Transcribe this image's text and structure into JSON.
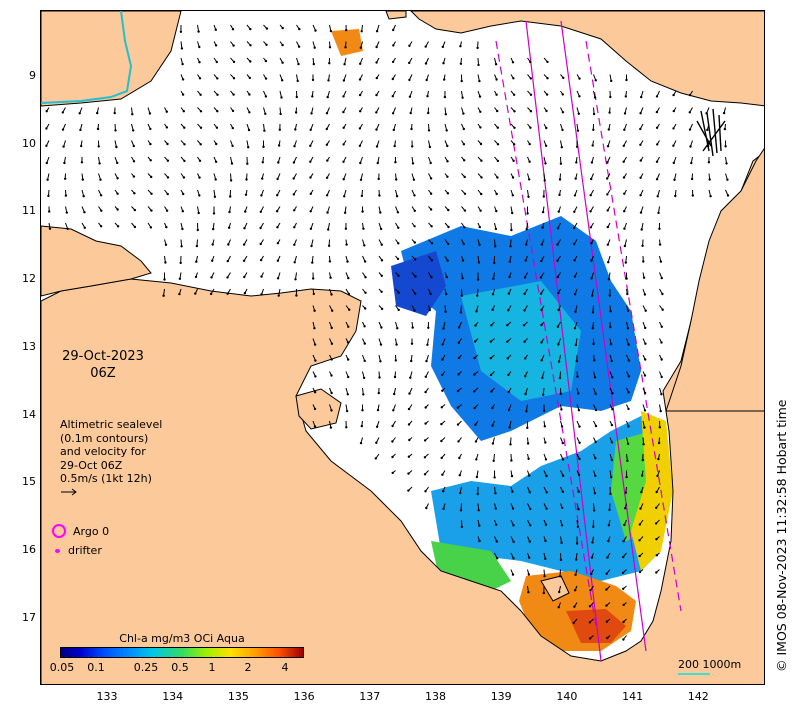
{
  "map": {
    "date": "29-Oct-2023",
    "time": "06Z",
    "lat_labels": [
      "9",
      "10",
      "11",
      "12",
      "13",
      "14",
      "15",
      "16",
      "17"
    ],
    "lon_labels": [
      "133",
      "134",
      "135",
      "136",
      "137",
      "138",
      "139",
      "140",
      "141",
      "142"
    ],
    "altimetry_legend": [
      "Altimetric sealevel",
      "(0.1m contours)",
      "and velocity for",
      "29-Oct 06Z",
      "0.5m/s (1kt 12h)"
    ],
    "argo_label": "Argo 0",
    "drifter_label": "drifter",
    "colorbar_title": "Chl-a mg/m3 OCi Aqua",
    "colorbar_ticks": [
      "0.05",
      "0.1",
      "0.25",
      "0.5",
      "1",
      "2",
      "4"
    ],
    "scale_label": "200  1000m",
    "credit": "© IMOS 08-Nov-2023 11:32:58 Hobart time",
    "colors": {
      "land": "#fbc99a",
      "water": "#ffffff",
      "track": "#cc00cc",
      "argo": "#ff00ff",
      "contour": "#20c0d0"
    }
  }
}
